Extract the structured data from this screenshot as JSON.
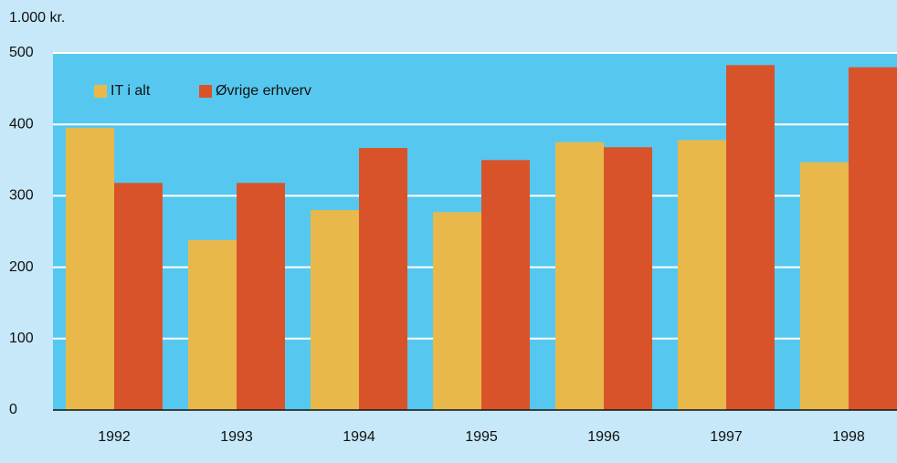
{
  "chart_data": {
    "type": "bar",
    "y_label": "1.000 kr.",
    "categories": [
      "1992",
      "1993",
      "1994",
      "1995",
      "1996",
      "1997",
      "1998"
    ],
    "series": [
      {
        "name": "IT i alt",
        "color": "#e8b84a",
        "values": [
          395,
          238,
          280,
          277,
          375,
          378,
          347
        ]
      },
      {
        "name": "Øvrige erhverv",
        "color": "#d9532a",
        "values": [
          318,
          318,
          367,
          350,
          368,
          483,
          480
        ]
      }
    ],
    "ylim": [
      0,
      500
    ],
    "yticks": [
      0,
      100,
      200,
      300,
      400,
      500
    ],
    "grid": true,
    "legend": "top-left"
  }
}
